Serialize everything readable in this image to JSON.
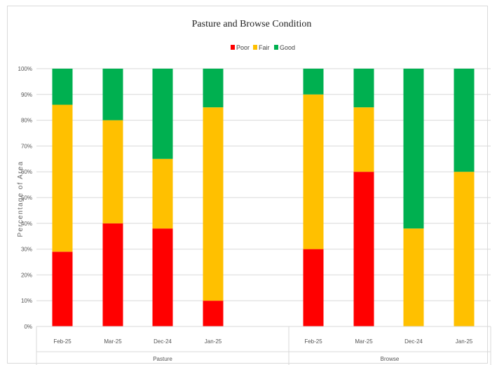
{
  "chart_data": {
    "type": "bar",
    "stacked": true,
    "percent": true,
    "title": "Pasture and  Browse Condition",
    "xlabel": "",
    "ylabel": "Percentage of Area",
    "ylim": [
      0,
      100
    ],
    "yticks": [
      "0%",
      "10%",
      "20%",
      "30%",
      "40%",
      "50%",
      "60%",
      "70%",
      "80%",
      "90%",
      "100%"
    ],
    "grid": true,
    "legend_position": "top",
    "groups": [
      {
        "name": "Pasture",
        "categories": [
          "Feb-25",
          "Mar-25",
          "Dec-24",
          "Jan-25"
        ]
      },
      {
        "name": "Browse",
        "categories": [
          "Feb-25",
          "Mar-25",
          "Dec-24",
          "Jan-25"
        ]
      }
    ],
    "series": [
      {
        "name": "Poor",
        "color": "#ff0000",
        "values": [
          29,
          40,
          38,
          10,
          30,
          60,
          0,
          0
        ]
      },
      {
        "name": "Fair",
        "color": "#ffc000",
        "values": [
          57,
          40,
          27,
          75,
          60,
          25,
          38,
          60
        ]
      },
      {
        "name": "Good",
        "color": "#00b050",
        "values": [
          14,
          20,
          35,
          15,
          10,
          15,
          62,
          40
        ]
      }
    ]
  }
}
